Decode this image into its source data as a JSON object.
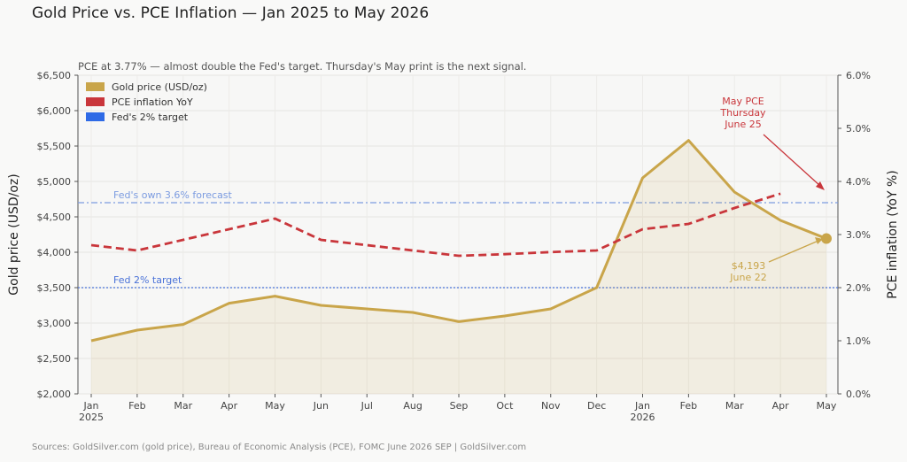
{
  "page": {
    "title": "Gold Price vs. PCE Inflation — Jan 2025 to May 2026",
    "footer": "Sources: GoldSilver.com (gold price), Bureau of Economic Analysis (PCE), FOMC June 2026 SEP  |  GoldSilver.com"
  },
  "chart_data": {
    "type": "line",
    "subtitle": "PCE at 3.77% — almost double the Fed's target. Thursday's May print is the next signal.",
    "categories": [
      "Jan",
      "Feb",
      "Mar",
      "Apr",
      "May",
      "Jun",
      "Jul",
      "Aug",
      "Sep",
      "Oct",
      "Nov",
      "Dec",
      "Jan",
      "Feb",
      "Mar",
      "Apr",
      "May"
    ],
    "year_labels": {
      "0": "2025",
      "12": "2026"
    },
    "ylabel_left": "Gold price (USD/oz)",
    "ylabel_right": "PCE inflation (YoY %)",
    "ylim_left": [
      2000,
      6500
    ],
    "ylim_right": [
      0,
      6
    ],
    "yticks_left": [
      "$2,000",
      "$2,500",
      "$3,000",
      "$3,500",
      "$4,000",
      "$4,500",
      "$5,000",
      "$5,500",
      "$6,000",
      "$6,500"
    ],
    "yticks_right": [
      "0.0%",
      "1.0%",
      "2.0%",
      "3.0%",
      "4.0%",
      "5.0%",
      "6.0%"
    ],
    "grid": true,
    "legend_position": "top-left",
    "series": [
      {
        "name": "Gold price (USD/oz)",
        "axis": "left",
        "color": "#c9a54a",
        "style": "solid-area",
        "values": [
          2750,
          2900,
          2980,
          3280,
          3380,
          3250,
          3200,
          3150,
          3020,
          3100,
          3200,
          3500,
          5050,
          5580,
          4850,
          4450,
          4193
        ]
      },
      {
        "name": "PCE inflation YoY",
        "axis": "right",
        "color": "#c9363b",
        "style": "dashed",
        "values": [
          2.8,
          2.7,
          2.9,
          3.1,
          3.3,
          2.9,
          2.8,
          2.7,
          2.6,
          2.63,
          2.67,
          2.7,
          3.1,
          3.2,
          3.5,
          3.77,
          null
        ]
      }
    ],
    "legend": [
      {
        "label": "Gold price (USD/oz)",
        "color": "#c9a54a"
      },
      {
        "label": "PCE inflation YoY",
        "color": "#c9363b"
      },
      {
        "label": "Fed's 2% target",
        "color": "#2e6ae6"
      }
    ],
    "reference_lines": [
      {
        "label": "Fed 2% target",
        "axis": "right",
        "value": 2.0,
        "color": "#4a72d8",
        "style": "dotted"
      },
      {
        "label": "Fed's own 3.6% forecast",
        "axis": "right",
        "value": 3.6,
        "color": "#7b9be0",
        "style": "dashdot"
      }
    ],
    "annotations": [
      {
        "lines": [
          "May PCE",
          "Thursday",
          "June 25"
        ],
        "color": "#c9363b"
      },
      {
        "lines": [
          "$4,193",
          "June 22"
        ],
        "color": "#c9a54a"
      }
    ]
  }
}
